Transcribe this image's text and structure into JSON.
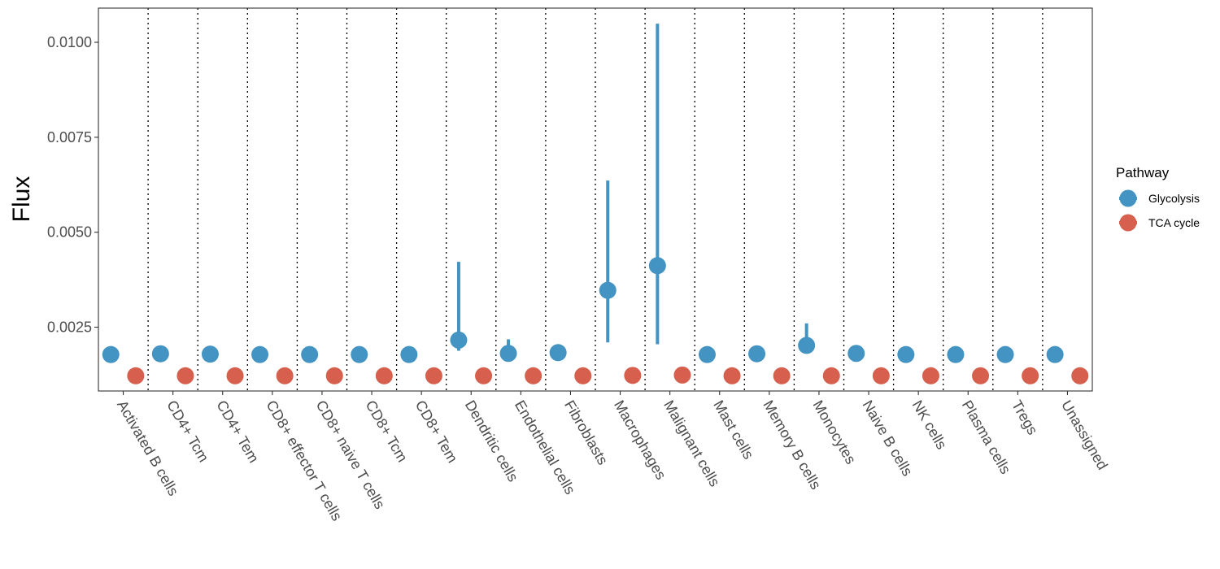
{
  "chart_data": {
    "type": "scatter",
    "ylabel": "Flux",
    "ylim": [
      0.00082,
      0.0109
    ],
    "yticks": [
      0.0025,
      0.005,
      0.0075,
      0.01
    ],
    "ytick_labels": [
      "0.0025",
      "0.0050",
      "0.0075",
      "0.0100"
    ],
    "grid": false,
    "legend_position": "right",
    "legend_title": "Pathway",
    "categories": [
      "Activated B cells",
      "CD4+ Tcm",
      "CD4+ Tem",
      "CD8+ effector T cells",
      "CD8+ naive T cells",
      "CD8+ Tcm",
      "CD8+ Tem",
      "Dendritic cells",
      "Endothelial cells",
      "Fibroblasts",
      "Macrophages",
      "Malignant cells",
      "Mast cells",
      "Memory B cells",
      "Monocytes",
      "Naive B cells",
      "NK cells",
      "Plasma cells",
      "Tregs",
      "Unassigned"
    ],
    "series": [
      {
        "name": "Glycolysis",
        "color": "#4393c3",
        "values": [
          0.00178,
          0.0018,
          0.00179,
          0.00178,
          0.00178,
          0.00178,
          0.00178,
          0.00216,
          0.00181,
          0.00183,
          0.00347,
          0.00412,
          0.00178,
          0.0018,
          0.00202,
          0.00181,
          0.00178,
          0.00178,
          0.00178,
          0.00178
        ],
        "lower": [
          0.00178,
          0.0018,
          0.00179,
          0.00178,
          0.00178,
          0.00178,
          0.00178,
          0.00188,
          0.00178,
          0.00183,
          0.0021,
          0.00205,
          0.00178,
          0.0018,
          0.00195,
          0.00181,
          0.00178,
          0.00178,
          0.00178,
          0.00178
        ],
        "upper": [
          0.00178,
          0.0018,
          0.00179,
          0.00178,
          0.00178,
          0.00178,
          0.00178,
          0.00422,
          0.00218,
          0.00183,
          0.00636,
          0.01049,
          0.00178,
          0.0018,
          0.0026,
          0.00181,
          0.00178,
          0.00178,
          0.00178,
          0.00178
        ]
      },
      {
        "name": "TCA cycle",
        "color": "#d6604d",
        "values": [
          0.00122,
          0.00122,
          0.00122,
          0.00122,
          0.00122,
          0.00122,
          0.00122,
          0.00122,
          0.00122,
          0.00122,
          0.00123,
          0.00124,
          0.00122,
          0.00122,
          0.00122,
          0.00122,
          0.00122,
          0.00122,
          0.00122,
          0.00122
        ],
        "lower": [
          0.00122,
          0.00122,
          0.00122,
          0.00122,
          0.00122,
          0.00122,
          0.00122,
          0.00122,
          0.00122,
          0.00122,
          0.00123,
          0.00124,
          0.00122,
          0.00122,
          0.00122,
          0.00122,
          0.00122,
          0.00122,
          0.00122,
          0.00122
        ],
        "upper": [
          0.00122,
          0.00122,
          0.00122,
          0.00122,
          0.00122,
          0.00122,
          0.00122,
          0.00122,
          0.00122,
          0.00122,
          0.00123,
          0.00124,
          0.00122,
          0.00122,
          0.00122,
          0.00122,
          0.00122,
          0.00122,
          0.00122,
          0.00122
        ]
      }
    ]
  }
}
